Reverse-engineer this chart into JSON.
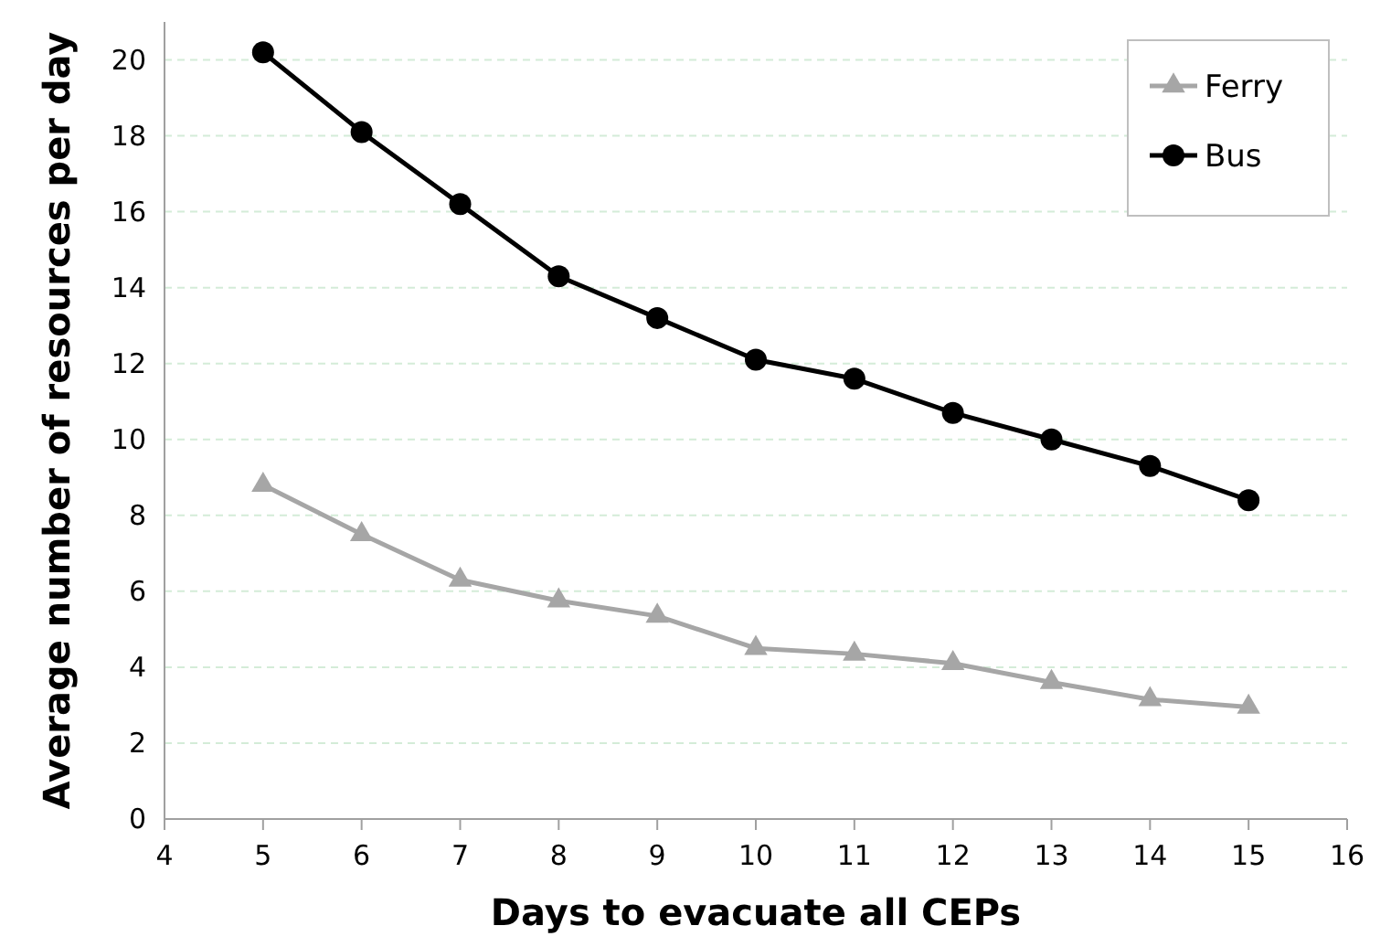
{
  "chart_data": {
    "type": "line",
    "xlabel": "Days to evacuate all CEPs",
    "ylabel": "Average number of resources per day",
    "x": [
      5,
      6,
      7,
      8,
      9,
      10,
      11,
      12,
      13,
      14,
      15
    ],
    "series": [
      {
        "name": "Ferry",
        "color": "#a6a6a6",
        "marker": "triangle",
        "values": [
          8.8,
          7.5,
          6.3,
          5.75,
          5.35,
          4.5,
          4.35,
          4.1,
          3.6,
          3.15,
          2.95
        ]
      },
      {
        "name": "Bus",
        "color": "#000000",
        "marker": "circle",
        "values": [
          20.2,
          18.1,
          16.2,
          14.3,
          13.2,
          12.1,
          11.6,
          10.7,
          10.0,
          9.3,
          8.4
        ]
      }
    ],
    "xlim": [
      4,
      16
    ],
    "xticks": [
      4,
      5,
      6,
      7,
      8,
      9,
      10,
      11,
      12,
      13,
      14,
      15,
      16
    ],
    "ylim": [
      0,
      21
    ],
    "yticks": [
      0,
      2,
      4,
      6,
      8,
      10,
      12,
      14,
      16,
      18,
      20
    ],
    "grid": "y",
    "legend": "top right"
  }
}
